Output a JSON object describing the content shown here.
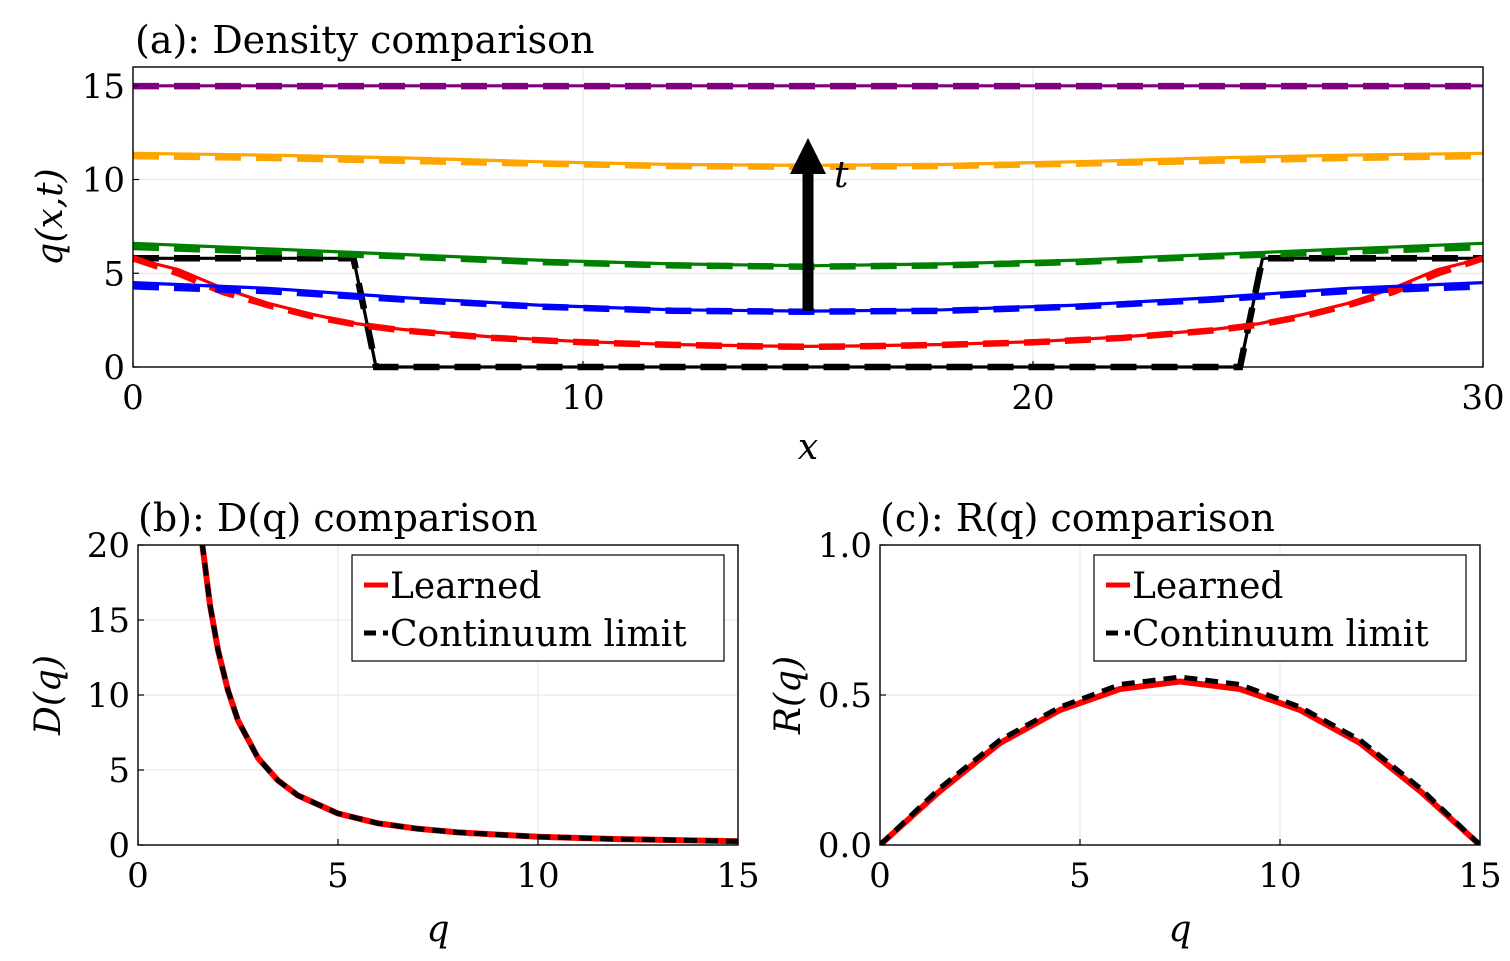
{
  "chart_data": [
    {
      "id": "a",
      "type": "line",
      "title": "(a): Density comparison",
      "xlabel": "x",
      "ylabel": "q(x,t)",
      "xlim": [
        0,
        30
      ],
      "ylim": [
        0,
        16
      ],
      "xticks": [
        0,
        10,
        20,
        30
      ],
      "yticks": [
        0,
        5,
        10,
        15
      ],
      "grid": true,
      "annotation": {
        "label": "t",
        "x": 15,
        "y_from": 3,
        "y_to": 12
      },
      "series": [
        {
          "color": "#000000",
          "x": [
            0,
            4.9,
            5.4,
            24.6,
            25.1,
            30
          ],
          "learned": [
            5.8,
            5.8,
            0,
            0,
            5.8,
            5.8
          ],
          "continuum": [
            5.8,
            5.8,
            0,
            0,
            5.8,
            5.8
          ]
        },
        {
          "color": "#ff0000",
          "x": [
            0,
            1,
            2,
            3,
            4,
            5,
            6,
            8,
            10,
            12,
            14,
            15,
            16,
            18,
            20,
            22,
            24,
            25,
            26,
            27,
            28,
            29,
            30
          ],
          "learned": [
            5.8,
            5.2,
            4.2,
            3.4,
            2.8,
            2.3,
            2.0,
            1.6,
            1.35,
            1.2,
            1.12,
            1.1,
            1.12,
            1.2,
            1.35,
            1.6,
            2.0,
            2.3,
            2.8,
            3.4,
            4.2,
            5.2,
            5.8
          ],
          "continuum": [
            5.8,
            5.0,
            4.0,
            3.3,
            2.7,
            2.25,
            1.95,
            1.55,
            1.32,
            1.18,
            1.1,
            1.08,
            1.1,
            1.18,
            1.32,
            1.55,
            1.95,
            2.25,
            2.7,
            3.3,
            4.0,
            5.0,
            5.8
          ]
        },
        {
          "color": "#0000ff",
          "x": [
            0,
            3,
            6,
            9,
            12,
            15,
            18,
            21,
            24,
            27,
            30
          ],
          "learned": [
            4.5,
            4.2,
            3.7,
            3.3,
            3.05,
            2.98,
            3.05,
            3.3,
            3.7,
            4.2,
            4.5
          ],
          "continuum": [
            4.3,
            4.05,
            3.6,
            3.22,
            3.0,
            2.95,
            3.0,
            3.22,
            3.6,
            4.05,
            4.3
          ]
        },
        {
          "color": "#008000",
          "x": [
            0,
            3,
            6,
            9,
            12,
            15,
            18,
            21,
            24,
            27,
            30
          ],
          "learned": [
            6.6,
            6.3,
            6.0,
            5.7,
            5.5,
            5.4,
            5.5,
            5.7,
            6.0,
            6.3,
            6.6
          ],
          "continuum": [
            6.4,
            6.15,
            5.9,
            5.6,
            5.42,
            5.35,
            5.42,
            5.6,
            5.9,
            6.15,
            6.4
          ]
        },
        {
          "color": "#ffa500",
          "x": [
            0,
            3,
            6,
            9,
            12,
            15,
            18,
            21,
            24,
            27,
            30
          ],
          "learned": [
            11.4,
            11.3,
            11.15,
            10.95,
            10.8,
            10.75,
            10.8,
            10.95,
            11.15,
            11.3,
            11.4
          ],
          "continuum": [
            11.25,
            11.15,
            11.0,
            10.85,
            10.72,
            10.68,
            10.72,
            10.85,
            11.0,
            11.15,
            11.25
          ]
        },
        {
          "color": "#800080",
          "x": [
            0,
            30
          ],
          "learned": [
            15.0,
            15.0
          ],
          "continuum": [
            14.98,
            14.98
          ]
        }
      ]
    },
    {
      "id": "b",
      "type": "line",
      "title": "(b): D(q) comparison",
      "xlabel": "q",
      "ylabel": "D(q)",
      "xlim": [
        0,
        15
      ],
      "ylim": [
        0,
        20
      ],
      "xticks": [
        0,
        5,
        10,
        15
      ],
      "yticks": [
        0,
        5,
        10,
        15,
        20
      ],
      "grid": true,
      "legend": {
        "placement": "top-right",
        "entries": [
          "Learned",
          "Continuum limit"
        ]
      },
      "series": [
        {
          "name": "Learned",
          "color": "#ff0000",
          "x": [
            1.6,
            1.8,
            2.0,
            2.25,
            2.5,
            3,
            3.5,
            4,
            5,
            6,
            7,
            8,
            10,
            12,
            15
          ],
          "values": [
            20.2,
            16.0,
            13.0,
            10.3,
            8.3,
            5.8,
            4.3,
            3.3,
            2.1,
            1.45,
            1.08,
            0.84,
            0.55,
            0.39,
            0.25
          ]
        },
        {
          "name": "Continuum limit",
          "color": "#000000",
          "x": [
            1.6,
            1.8,
            2.0,
            2.25,
            2.5,
            3,
            3.5,
            4,
            5,
            6,
            7,
            8,
            10,
            12,
            15
          ],
          "values": [
            20.2,
            16.0,
            13.0,
            10.3,
            8.3,
            5.8,
            4.3,
            3.3,
            2.1,
            1.45,
            1.08,
            0.84,
            0.55,
            0.39,
            0.25
          ]
        }
      ]
    },
    {
      "id": "c",
      "type": "line",
      "title": "(c): R(q) comparison",
      "xlabel": "q",
      "ylabel": "R(q)",
      "xlim": [
        0,
        15
      ],
      "ylim": [
        0,
        1.0
      ],
      "xticks": [
        0,
        5,
        10,
        15
      ],
      "yticks": [
        0.0,
        0.5,
        1.0
      ],
      "yticklabels": [
        "0.0",
        "0.5",
        "1.0"
      ],
      "grid": true,
      "legend": {
        "placement": "top-right",
        "entries": [
          "Learned",
          "Continuum limit"
        ]
      },
      "series": [
        {
          "name": "Learned",
          "color": "#ff0000",
          "x": [
            0,
            1.5,
            3,
            4.5,
            6,
            7.5,
            9,
            10.5,
            12,
            13.5,
            15
          ],
          "values": [
            0,
            0.18,
            0.34,
            0.45,
            0.52,
            0.545,
            0.52,
            0.45,
            0.34,
            0.18,
            0
          ]
        },
        {
          "name": "Continuum limit",
          "color": "#000000",
          "x": [
            0,
            1.5,
            3,
            4.5,
            6,
            7.5,
            9,
            10.5,
            12,
            13.5,
            15
          ],
          "values": [
            0,
            0.19,
            0.35,
            0.46,
            0.535,
            0.56,
            0.535,
            0.46,
            0.35,
            0.19,
            0
          ]
        }
      ]
    }
  ]
}
